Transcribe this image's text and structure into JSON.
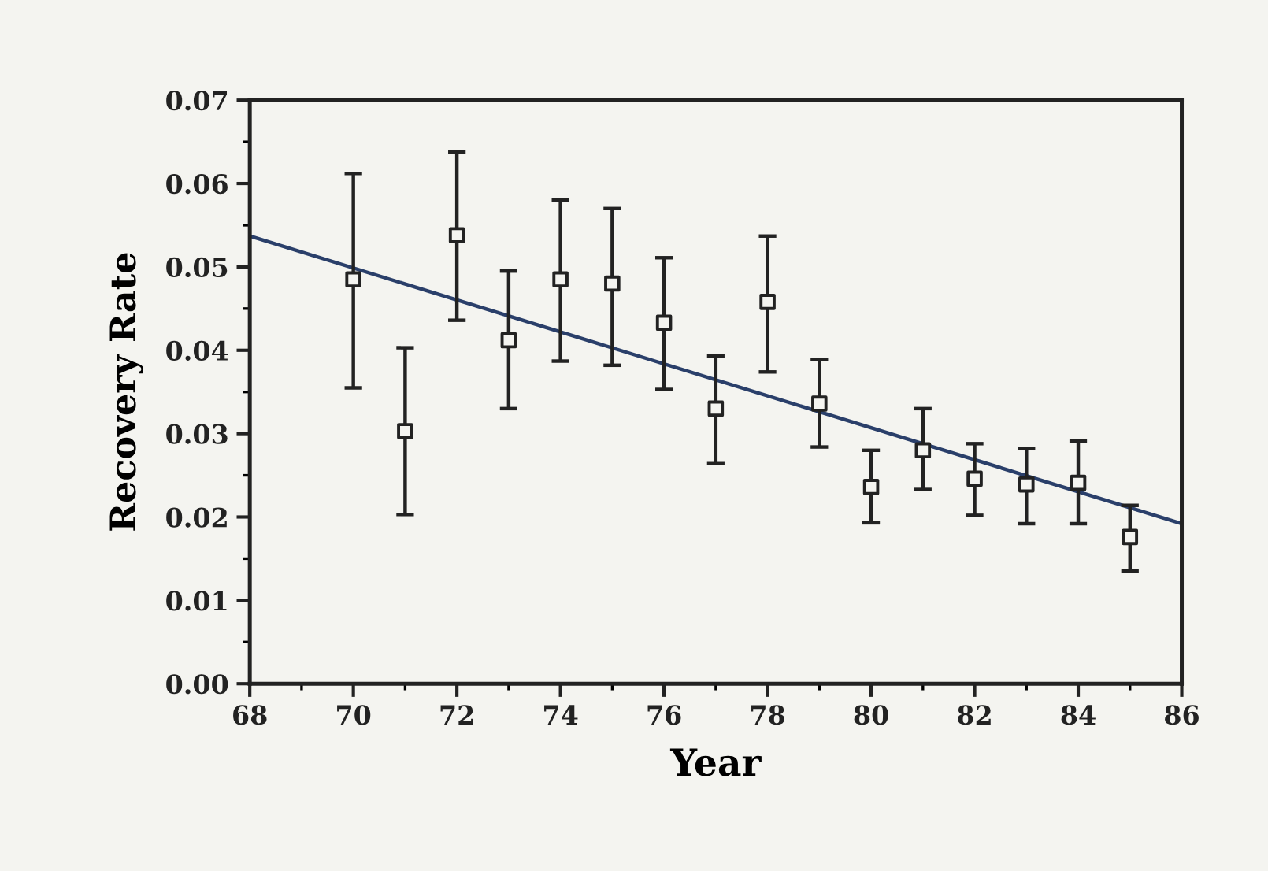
{
  "chart_data": {
    "type": "scatter",
    "xlabel": "Year",
    "ylabel": "Recovery Rate",
    "xlim": [
      68,
      86
    ],
    "ylim": [
      0,
      0.07
    ],
    "xticks": [
      68,
      70,
      72,
      74,
      76,
      78,
      80,
      82,
      84,
      86
    ],
    "yticks": [
      {
        "value": 0,
        "label": "0.00"
      },
      {
        "value": 0.01,
        "label": "0.01"
      },
      {
        "value": 0.02,
        "label": "0.02"
      },
      {
        "value": 0.03,
        "label": "0.03"
      },
      {
        "value": 0.04,
        "label": "0.04"
      },
      {
        "value": 0.05,
        "label": "0.05"
      },
      {
        "value": 0.06,
        "label": "0.06"
      },
      {
        "value": 0.07,
        "label": "0.07"
      }
    ],
    "grid": false,
    "legend": false,
    "series": [
      {
        "marker": "square",
        "color": "#222222",
        "x": [
          70,
          71,
          72,
          73,
          74,
          75,
          76,
          77,
          78,
          79,
          80,
          81,
          82,
          83,
          84,
          85
        ],
        "values": [
          0.0485,
          0.0303,
          0.0538,
          0.0412,
          0.0485,
          0.048,
          0.0433,
          0.033,
          0.0458,
          0.0336,
          0.0236,
          0.028,
          0.0246,
          0.0239,
          0.0241,
          0.0176
        ],
        "errors": [
          [
            0.0355,
            0.0612
          ],
          [
            0.0203,
            0.0403
          ],
          [
            0.0436,
            0.0638
          ],
          [
            0.033,
            0.0495
          ],
          [
            0.0387,
            0.058
          ],
          [
            0.0382,
            0.057
          ],
          [
            0.0353,
            0.0511
          ],
          [
            0.0264,
            0.0393
          ],
          [
            0.0374,
            0.0537
          ],
          [
            0.0284,
            0.0389
          ],
          [
            0.0193,
            0.028
          ],
          [
            0.0233,
            0.033
          ],
          [
            0.0202,
            0.0288
          ],
          [
            0.0192,
            0.0282
          ],
          [
            0.0192,
            0.0291
          ],
          [
            0.0135,
            0.0214
          ]
        ]
      },
      {
        "type": "line",
        "color": "#2a3f6a",
        "line_style": "solid",
        "marker": "none",
        "x": [
          68,
          86
        ],
        "values": [
          0.0537,
          0.0192
        ]
      }
    ]
  }
}
